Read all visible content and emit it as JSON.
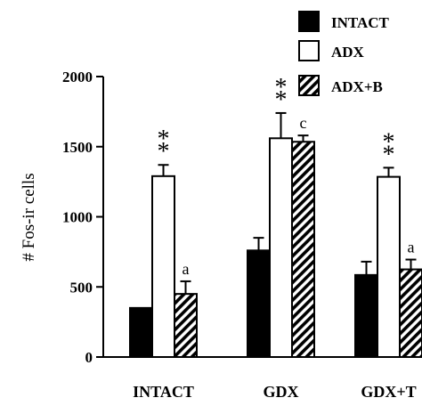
{
  "chart_data": {
    "type": "bar",
    "categories": [
      "INTACT",
      "GDX",
      "GDX+T"
    ],
    "series": [
      {
        "name": "INTACT",
        "fill": "solid",
        "values": [
          350,
          760,
          585
        ],
        "errors": [
          0,
          90,
          95
        ],
        "annotations": [
          "",
          "",
          ""
        ]
      },
      {
        "name": "ADX",
        "fill": "open",
        "values": [
          1290,
          1560,
          1285
        ],
        "errors": [
          80,
          180,
          65
        ],
        "annotations": [
          "**",
          "**",
          "**"
        ]
      },
      {
        "name": "ADX+B",
        "fill": "hatched",
        "values": [
          450,
          1535,
          625
        ],
        "errors": [
          90,
          45,
          70
        ],
        "annotations": [
          "a",
          "c",
          "a"
        ]
      }
    ],
    "ylabel": "# Fos-ir cells",
    "xlabel": "",
    "ylim": [
      0,
      2000
    ],
    "yticks": [
      0,
      500,
      1000,
      1500,
      2000
    ],
    "legend_position": "top-right",
    "grid": false,
    "colors": {
      "ink": "#000000",
      "background": "#ffffff"
    }
  }
}
